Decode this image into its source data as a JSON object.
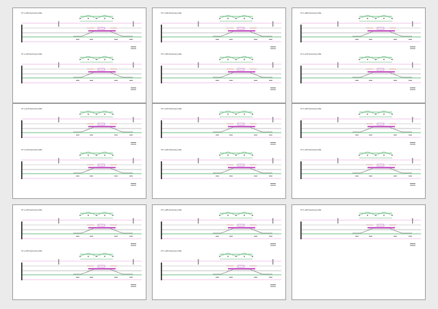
{
  "colors": {
    "background": "#ebebeb",
    "sheet": "#ffffff",
    "sheet_border": "#9b9b9b",
    "guide_pink": "#e58ad6",
    "guide_green": "#3aa85a",
    "grade_line": "#555555",
    "platform": "#c95fc9"
  },
  "sheets": [
    {
      "profiles": [
        {
          "title": "ST 1+000 Sectional profile"
        },
        {
          "title": "ST 1+020 Sectional profile"
        }
      ]
    },
    {
      "profiles": [
        {
          "title": "ST 1+040 Sectional profile"
        },
        {
          "title": "ST 1+060 Sectional profile"
        }
      ]
    },
    {
      "profiles": [
        {
          "title": "ST 1+080 Sectional profile"
        },
        {
          "title": "ST 1+100 Sectional profile"
        }
      ]
    },
    {
      "profiles": [
        {
          "title": "ST 1+120 Sectional profile"
        },
        {
          "title": "ST 1+140 Sectional profile"
        }
      ]
    },
    {
      "profiles": [
        {
          "title": "ST 1+160 Sectional profile"
        },
        {
          "title": "ST 1+180 Sectional profile"
        }
      ]
    },
    {
      "profiles": [
        {
          "title": "ST 1+200 Sectional profile"
        },
        {
          "title": "ST 1+220 Sectional profile"
        }
      ]
    },
    {
      "profiles": [
        {
          "title": "ST 1+240 Sectional profile"
        },
        {
          "title": "ST 1+260 Sectional profile"
        }
      ]
    },
    {
      "profiles": [
        {
          "title": "ST 1+280 Sectional profile"
        },
        {
          "title": "ST 1+300 Sectional profile"
        }
      ]
    },
    {
      "profiles": [
        {
          "title": "ST 1+320 Sectional profile"
        }
      ]
    }
  ]
}
